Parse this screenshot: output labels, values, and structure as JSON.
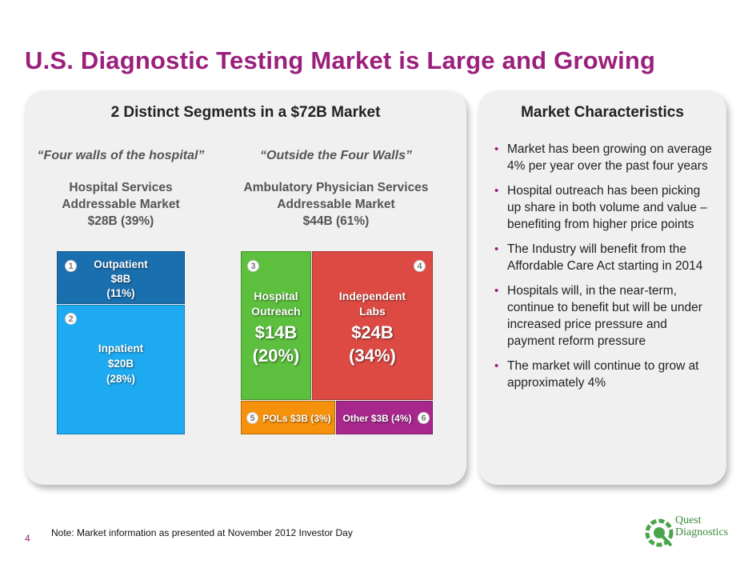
{
  "title": "U.S. Diagnostic Testing Market is Large and Growing",
  "left_panel": {
    "heading": "2 Distinct Segments in a $72B Market",
    "hospital": {
      "tagline": "“Four walls of the hospital”",
      "line1": "Hospital Services",
      "line2": "Addressable Market",
      "line3": "$28B (39%)"
    },
    "ambulatory": {
      "tagline": "“Outside the Four Walls”",
      "line1": "Ambulatory Physician Services",
      "line2": "Addressable Market",
      "line3": "$44B  (61%)"
    },
    "segments": [
      {
        "num": "1",
        "line1": "Outpatient",
        "line2": "$8B",
        "line3": "(11%)",
        "color": "#1a6fae"
      },
      {
        "num": "2",
        "line1": "Inpatient",
        "line2": "$20B",
        "line3": "(28%)",
        "color": "#1eaaf0"
      },
      {
        "num": "3",
        "line1": "Hospital",
        "line2": "Outreach",
        "value": "$14B",
        "pct": "(20%)",
        "color": "#5cbf3e"
      },
      {
        "num": "4",
        "line1": "Independent",
        "line2": "Labs",
        "value": "$24B",
        "pct": "(34%)",
        "color": "#dd4a44"
      },
      {
        "num": "5",
        "label": "POLs $3B (3%)",
        "color": "#f5910a"
      },
      {
        "num": "6",
        "label": "Other $3B (4%)",
        "color": "#a8278d"
      }
    ]
  },
  "right_panel": {
    "heading": "Market Characteristics",
    "bullets": [
      "Market has been growing on average 4% per year over the past four years",
      "Hospital outreach has been picking up share in both volume and value – benefiting from higher price points",
      "The Industry will benefit from the Affordable Care Act starting in 2014",
      "Hospitals will, in the near-term, continue to benefit but will be under increased price pressure and payment reform pressure",
      "The market will continue to grow at approximately 4%"
    ]
  },
  "footer": {
    "page_number": "4",
    "note": "Note: Market information as presented at November 2012 Investor Day"
  },
  "logo": {
    "line1": "Quest",
    "line2": "Diagnostics"
  }
}
